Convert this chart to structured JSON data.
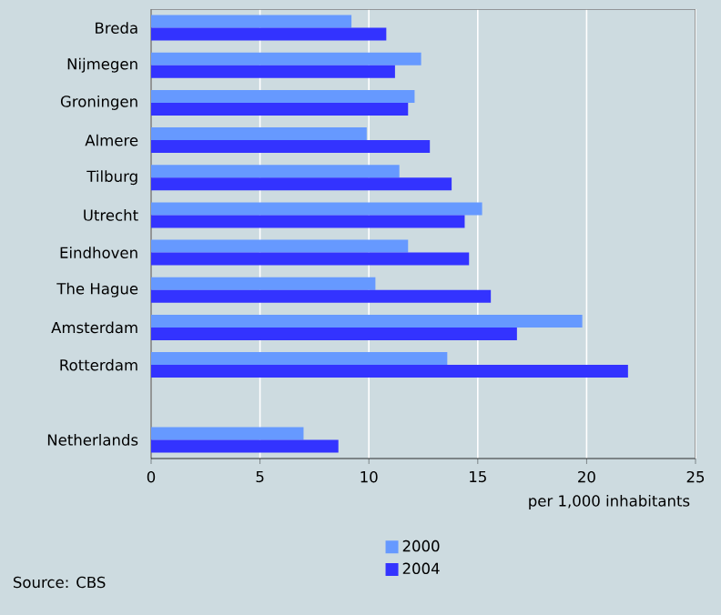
{
  "chart_data": {
    "type": "bar",
    "orientation": "horizontal",
    "categories": [
      "Breda",
      "Nijmegen",
      "Groningen",
      "Almere",
      "Tilburg",
      "Utrecht",
      "Eindhoven",
      "The Hague",
      "Amsterdam",
      "Rotterdam",
      null,
      "Netherlands"
    ],
    "series": [
      {
        "name": "2000",
        "color": "#6699ff",
        "values": [
          9.2,
          12.4,
          12.1,
          9.9,
          11.4,
          15.2,
          11.8,
          10.3,
          19.8,
          13.6,
          null,
          7.0
        ]
      },
      {
        "name": "2004",
        "color": "#3333ff",
        "values": [
          10.8,
          11.2,
          11.8,
          12.8,
          13.8,
          14.4,
          14.6,
          15.6,
          16.8,
          21.9,
          null,
          8.6
        ]
      }
    ],
    "xlim": [
      0,
      25
    ],
    "xticks": [
      0,
      5,
      10,
      15,
      20,
      25
    ],
    "xlabel": "per 1,000 inhabitants",
    "grid": "x",
    "legend": "bottom",
    "annotations": [
      "Source: CBS"
    ]
  }
}
